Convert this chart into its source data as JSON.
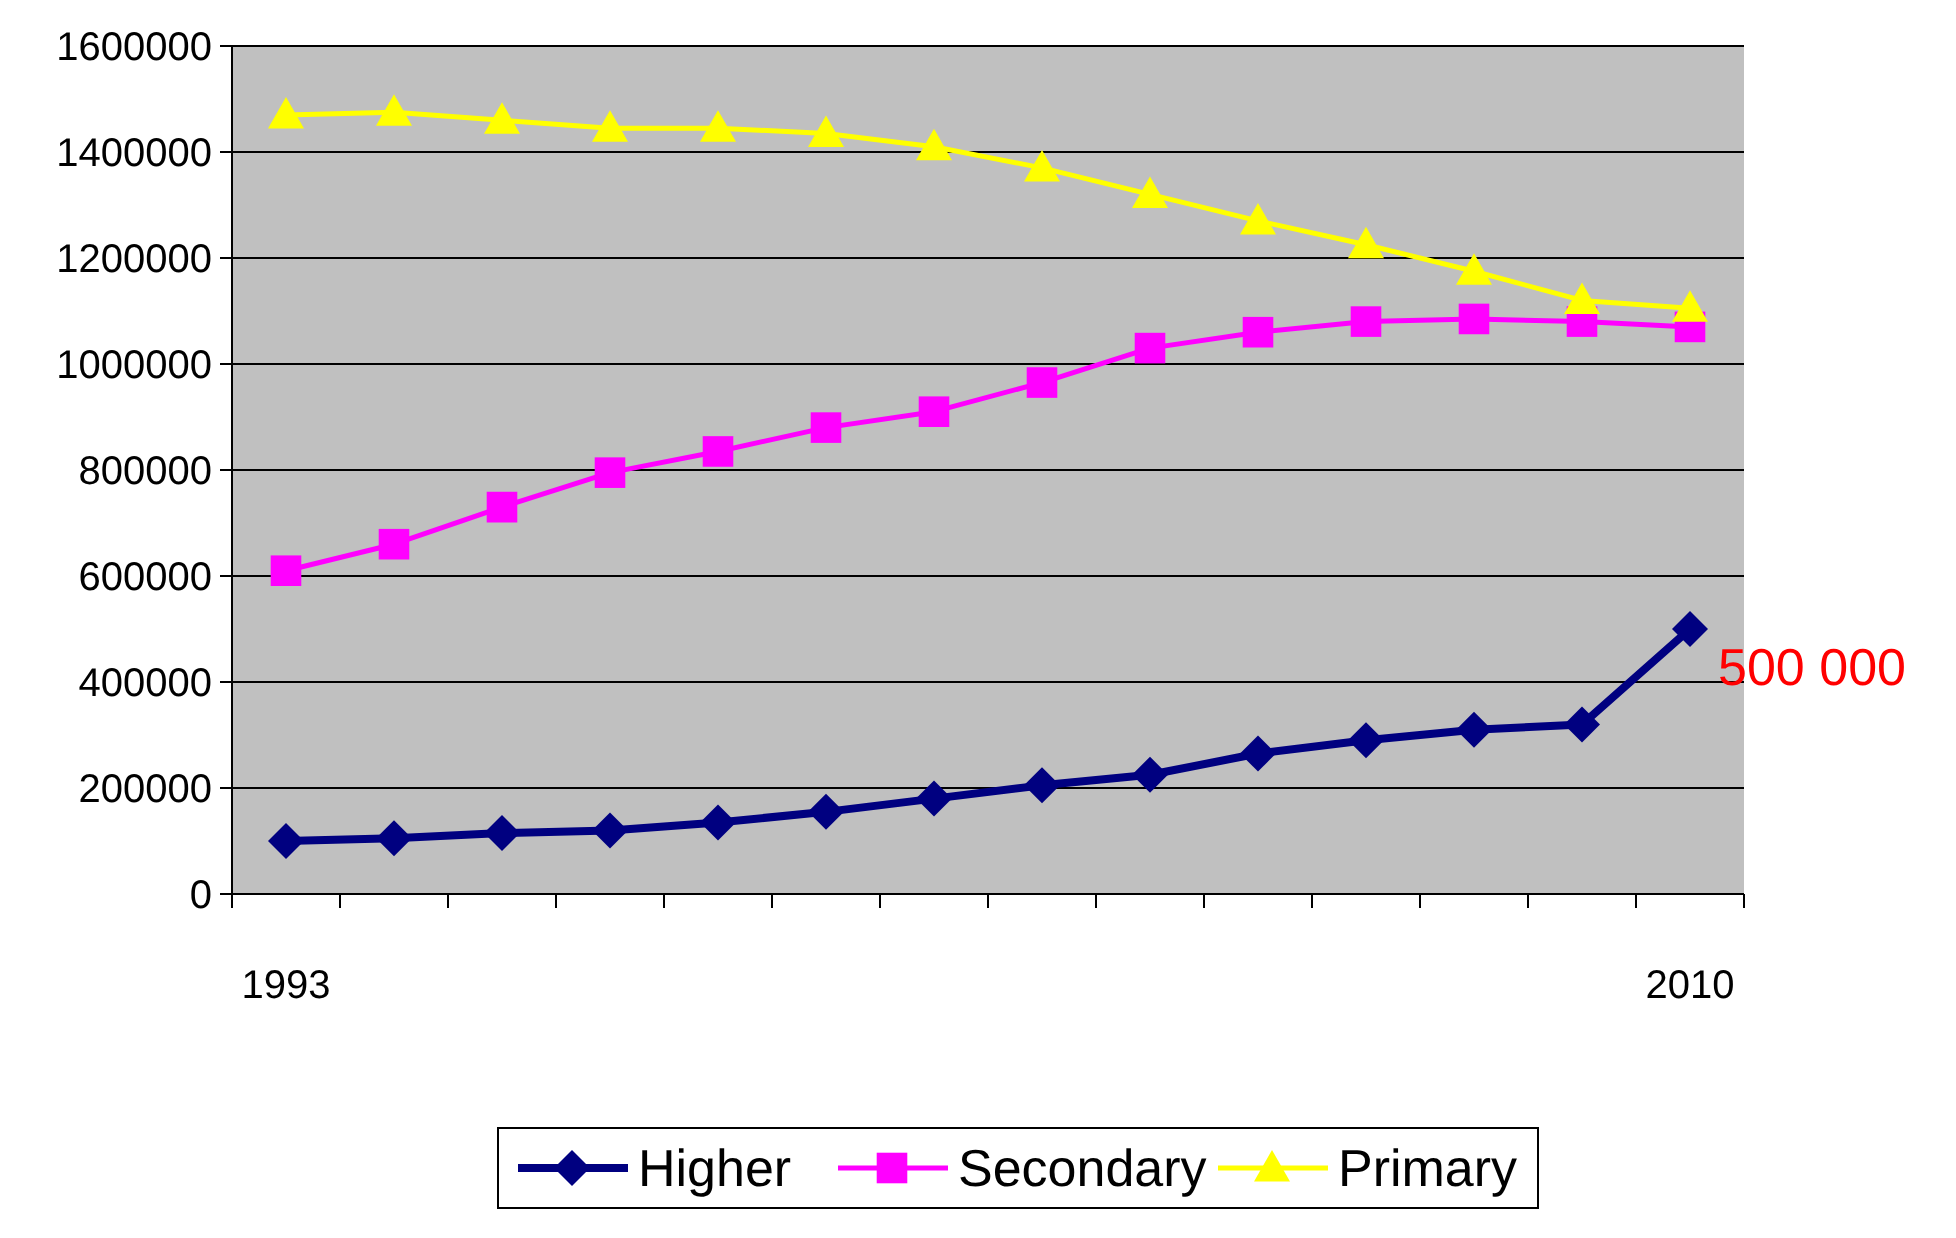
{
  "chart_data": {
    "type": "line",
    "categories": [
      "1993",
      null,
      null,
      null,
      null,
      null,
      null,
      null,
      null,
      null,
      null,
      null,
      null,
      "2010"
    ],
    "series": [
      {
        "name": "Higher",
        "color": "#000080",
        "marker": "diamond",
        "values": [
          100000,
          105000,
          115000,
          120000,
          135000,
          155000,
          180000,
          205000,
          225000,
          265000,
          290000,
          310000,
          320000,
          500000
        ]
      },
      {
        "name": "Secondary",
        "color": "#ff00ff",
        "marker": "square",
        "values": [
          610000,
          660000,
          730000,
          795000,
          835000,
          880000,
          910000,
          965000,
          1030000,
          1060000,
          1080000,
          1085000,
          1080000,
          1070000
        ]
      },
      {
        "name": "Primary",
        "color": "#ffff00",
        "marker": "triangle",
        "values": [
          1470000,
          1475000,
          1460000,
          1445000,
          1445000,
          1435000,
          1410000,
          1370000,
          1320000,
          1270000,
          1225000,
          1175000,
          1120000,
          1105000
        ]
      }
    ],
    "ylim": [
      0,
      1600000
    ],
    "yticks": [
      0,
      200000,
      400000,
      600000,
      800000,
      1000000,
      1200000,
      1400000,
      1600000
    ],
    "grid": "y",
    "legend": "bottom",
    "annotations": [
      {
        "text": "500 000",
        "x": "2010",
        "y": 500000
      }
    ]
  }
}
